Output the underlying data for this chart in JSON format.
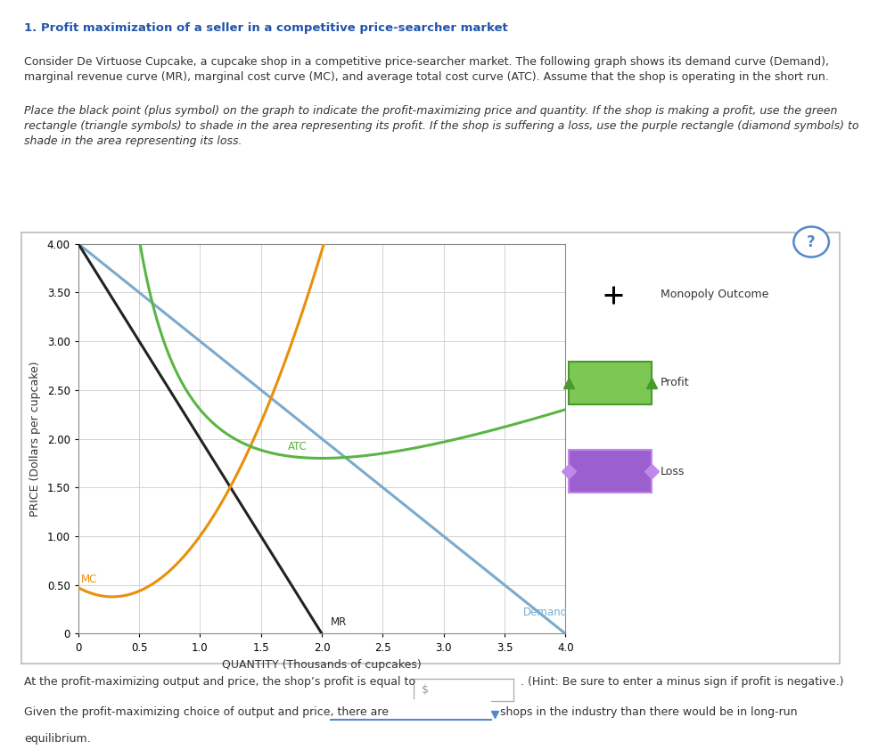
{
  "title": "1. Profit maximization of a seller in a competitive price-searcher market",
  "para1_line1": "Consider De Virtuose Cupcake, a cupcake shop in a competitive price-searcher market. The following graph shows its demand curve (Demand),",
  "para1_line2": "marginal revenue curve (MR), marginal cost curve (MC), and average total cost curve (ATC). Assume that the shop is operating in the short run.",
  "para2_line1": "Place the black point (plus symbol) on the graph to indicate the profit-maximizing price and quantity. If the shop is making a profit, use the green",
  "para2_line2": "rectangle (triangle symbols) to shade in the area representing its profit. If the shop is suffering a loss, use the purple rectangle (diamond symbols) to",
  "para2_line3": "shade in the area representing its loss.",
  "xlabel": "QUANTITY (Thousands of cupcakes)",
  "ylabel": "PRICE (Dollars per cupcake)",
  "xlim": [
    0,
    4.0
  ],
  "ylim": [
    0,
    4.0
  ],
  "xticks": [
    0,
    0.5,
    1.0,
    1.5,
    2.0,
    2.5,
    3.0,
    3.5,
    4.0
  ],
  "ytick_vals": [
    0,
    0.5,
    1.0,
    1.5,
    2.0,
    2.5,
    3.0,
    3.5,
    4.0
  ],
  "ytick_labels": [
    "0",
    "0.50",
    "1.00",
    "1.50",
    "2.00",
    "2.50",
    "3.00",
    "3.50",
    "4.00"
  ],
  "demand_color": "#7aaacc",
  "mr_color": "#222222",
  "mc_color": "#e8900a",
  "atc_color": "#5ab545",
  "grid_color": "#cccccc",
  "bg_color": "#ffffff",
  "panel_border_color": "#aaaaaa",
  "title_color": "#2255aa",
  "text_color": "#333333",
  "legend_profit_fill": "#7dc855",
  "legend_profit_edge": "#4a9a2a",
  "legend_loss_fill": "#9b5fcf",
  "legend_loss_edge": "#c088e8",
  "bottom_text1": "At the profit-maximizing output and price, the shop’s profit is equal to",
  "bottom_text2": ". (Hint: Be sure to enter a minus sign if profit is negative.)",
  "bottom_text3": "Given the profit-maximizing choice of output and price, there are",
  "bottom_text4": "shops in the industry than there would be in long-run",
  "bottom_text5": "equilibrium."
}
